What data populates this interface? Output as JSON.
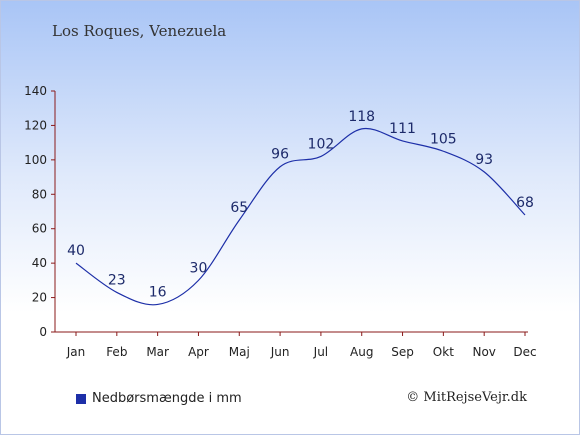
{
  "chart_data": {
    "type": "line",
    "title": "Los Roques, Venezuela",
    "categories": [
      "Jan",
      "Feb",
      "Mar",
      "Apr",
      "Maj",
      "Jun",
      "Jul",
      "Aug",
      "Sep",
      "Okt",
      "Nov",
      "Dec"
    ],
    "series": [
      {
        "name": "Nedbørsmængde i mm",
        "values": [
          40,
          23,
          16,
          30,
          65,
          96,
          102,
          118,
          111,
          105,
          93,
          68
        ],
        "color": "#1d2fa8"
      }
    ],
    "ylim": [
      0,
      140
    ],
    "yticks": [
      0,
      20,
      40,
      60,
      80,
      100,
      120,
      140
    ],
    "grid": false,
    "legend_position": "bottom-left"
  },
  "credit": "© MitRejseVejr.dk"
}
